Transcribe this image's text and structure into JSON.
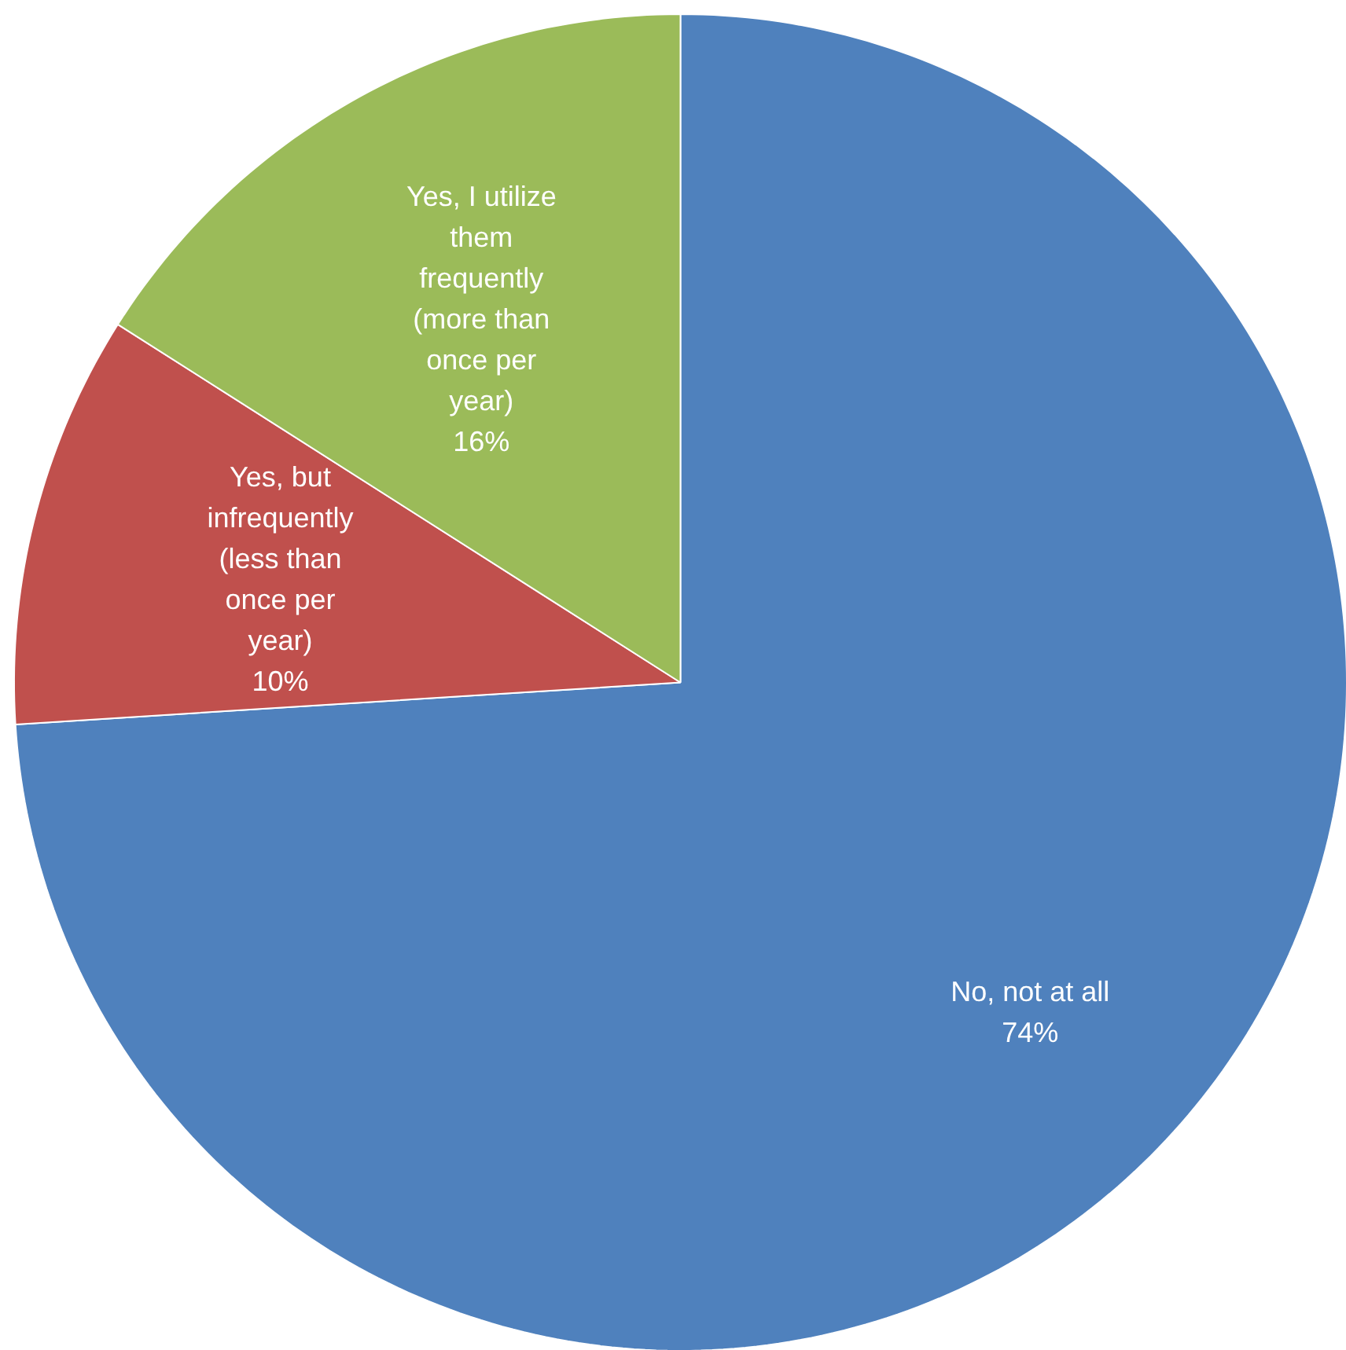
{
  "chart_data": {
    "type": "pie",
    "categories": [
      "No, not at all",
      "Yes, but\ninfrequently\n(less than\nonce per\nyear)",
      "Yes, I utilize\nthem\nfrequently\n(more than\nonce per\nyear)"
    ],
    "values": [
      74,
      10,
      16
    ],
    "value_labels": [
      "74%",
      "10%",
      "16%"
    ],
    "colors": [
      "#4f81bd",
      "#c0504d",
      "#9bbb59"
    ]
  }
}
